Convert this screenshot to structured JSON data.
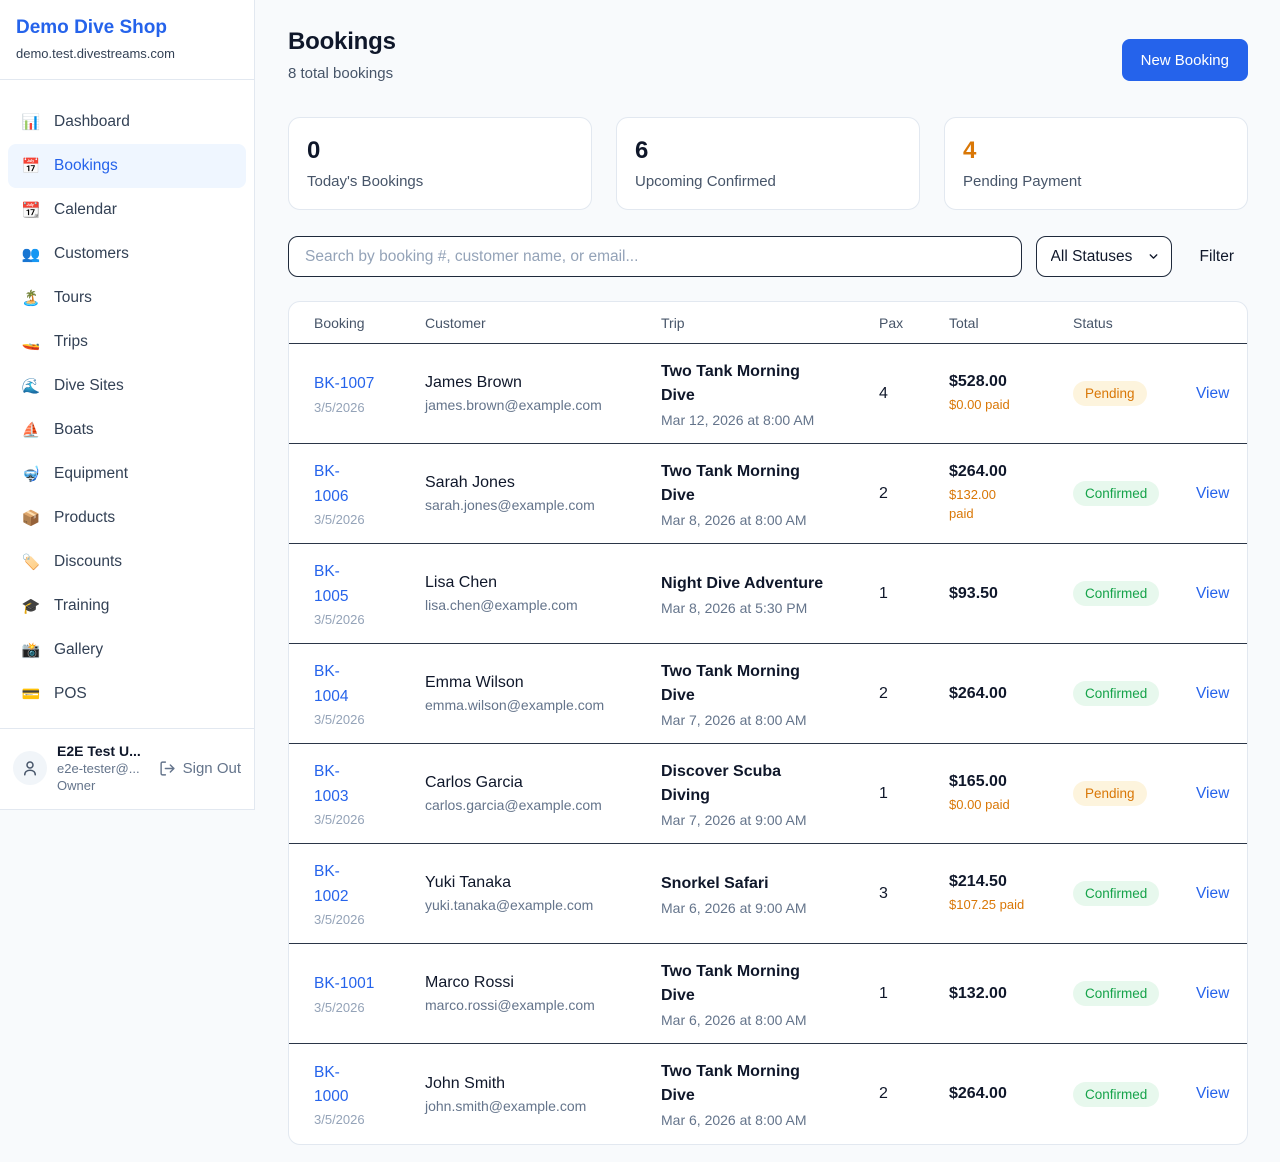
{
  "colors": {
    "accent": "#2563eb",
    "pending": "#d97706",
    "confirmed": "#16a34a",
    "border_light": "#e2e8f0",
    "row_divider": "#2b3647"
  },
  "sidebar": {
    "brand": "Demo Dive Shop",
    "domain": "demo.test.divestreams.com",
    "items": [
      {
        "icon": "📊",
        "label": "Dashboard",
        "active": false
      },
      {
        "icon": "📅",
        "label": "Bookings",
        "active": true
      },
      {
        "icon": "📆",
        "label": "Calendar",
        "active": false
      },
      {
        "icon": "👥",
        "label": "Customers",
        "active": false
      },
      {
        "icon": "🏝️",
        "label": "Tours",
        "active": false
      },
      {
        "icon": "🚤",
        "label": "Trips",
        "active": false
      },
      {
        "icon": "🌊",
        "label": "Dive Sites",
        "active": false
      },
      {
        "icon": "⛵",
        "label": "Boats",
        "active": false
      },
      {
        "icon": "🤿",
        "label": "Equipment",
        "active": false
      },
      {
        "icon": "📦",
        "label": "Products",
        "active": false
      },
      {
        "icon": "🏷️",
        "label": "Discounts",
        "active": false
      },
      {
        "icon": "🎓",
        "label": "Training",
        "active": false
      },
      {
        "icon": "📸",
        "label": "Gallery",
        "active": false
      },
      {
        "icon": "💳",
        "label": "POS",
        "active": false
      }
    ],
    "user": {
      "name": "E2E Test U...",
      "email": "e2e-tester@...",
      "role": "Owner",
      "sign_out": "Sign Out"
    }
  },
  "header": {
    "title": "Bookings",
    "subtitle": "8 total bookings",
    "new_booking_label": "New Booking"
  },
  "stats": [
    {
      "value": "0",
      "label": "Today's Bookings",
      "orange": false
    },
    {
      "value": "6",
      "label": "Upcoming Confirmed",
      "orange": false
    },
    {
      "value": "4",
      "label": "Pending Payment",
      "orange": true
    }
  ],
  "filters": {
    "search_placeholder": "Search by booking #, customer name, or email...",
    "status_value": "All Statuses",
    "filter_label": "Filter"
  },
  "table": {
    "columns": [
      "Booking",
      "Customer",
      "Trip",
      "Pax",
      "Total",
      "Status"
    ],
    "rows": [
      {
        "ref": "BK-1007",
        "ref_date": "3/5/2026",
        "customer": "James Brown",
        "email": "james.brown@example.com",
        "trip": "Two Tank Morning\nDive",
        "trip_date": "Mar 12, 2026 at 8:00 AM",
        "pax": "4",
        "total": "$528.00",
        "paid": "$0.00 paid",
        "status": "Pending",
        "action": "View"
      },
      {
        "ref": "BK-\n1006",
        "ref_date": "3/5/2026",
        "customer": "Sarah Jones",
        "email": "sarah.jones@example.com",
        "trip": "Two Tank Morning\nDive",
        "trip_date": "Mar 8, 2026 at 8:00 AM",
        "pax": "2",
        "total": "$264.00",
        "paid": "$132.00\npaid",
        "status": "Confirmed",
        "action": "View"
      },
      {
        "ref": "BK-\n1005",
        "ref_date": "3/5/2026",
        "customer": "Lisa Chen",
        "email": "lisa.chen@example.com",
        "trip": "Night Dive Adventure",
        "trip_date": "Mar 8, 2026 at 5:30 PM",
        "pax": "1",
        "total": "$93.50",
        "paid": null,
        "status": "Confirmed",
        "action": "View"
      },
      {
        "ref": "BK-\n1004",
        "ref_date": "3/5/2026",
        "customer": "Emma Wilson",
        "email": "emma.wilson@example.com",
        "trip": "Two Tank Morning\nDive",
        "trip_date": "Mar 7, 2026 at 8:00 AM",
        "pax": "2",
        "total": "$264.00",
        "paid": null,
        "status": "Confirmed",
        "action": "View"
      },
      {
        "ref": "BK-\n1003",
        "ref_date": "3/5/2026",
        "customer": "Carlos Garcia",
        "email": "carlos.garcia@example.com",
        "trip": "Discover Scuba\nDiving",
        "trip_date": "Mar 7, 2026 at 9:00 AM",
        "pax": "1",
        "total": "$165.00",
        "paid": "$0.00 paid",
        "status": "Pending",
        "action": "View"
      },
      {
        "ref": "BK-\n1002",
        "ref_date": "3/5/2026",
        "customer": "Yuki Tanaka",
        "email": "yuki.tanaka@example.com",
        "trip": "Snorkel Safari",
        "trip_date": "Mar 6, 2026 at 9:00 AM",
        "pax": "3",
        "total": "$214.50",
        "paid": "$107.25 paid",
        "status": "Confirmed",
        "action": "View"
      },
      {
        "ref": "BK-1001",
        "ref_date": "3/5/2026",
        "customer": "Marco Rossi",
        "email": "marco.rossi@example.com",
        "trip": "Two Tank Morning\nDive",
        "trip_date": "Mar 6, 2026 at 8:00 AM",
        "pax": "1",
        "total": "$132.00",
        "paid": null,
        "status": "Confirmed",
        "action": "View"
      },
      {
        "ref": "BK-\n1000",
        "ref_date": "3/5/2026",
        "customer": "John Smith",
        "email": "john.smith@example.com",
        "trip": "Two Tank Morning\nDive",
        "trip_date": "Mar 6, 2026 at 8:00 AM",
        "pax": "2",
        "total": "$264.00",
        "paid": null,
        "status": "Confirmed",
        "action": "View"
      }
    ]
  }
}
